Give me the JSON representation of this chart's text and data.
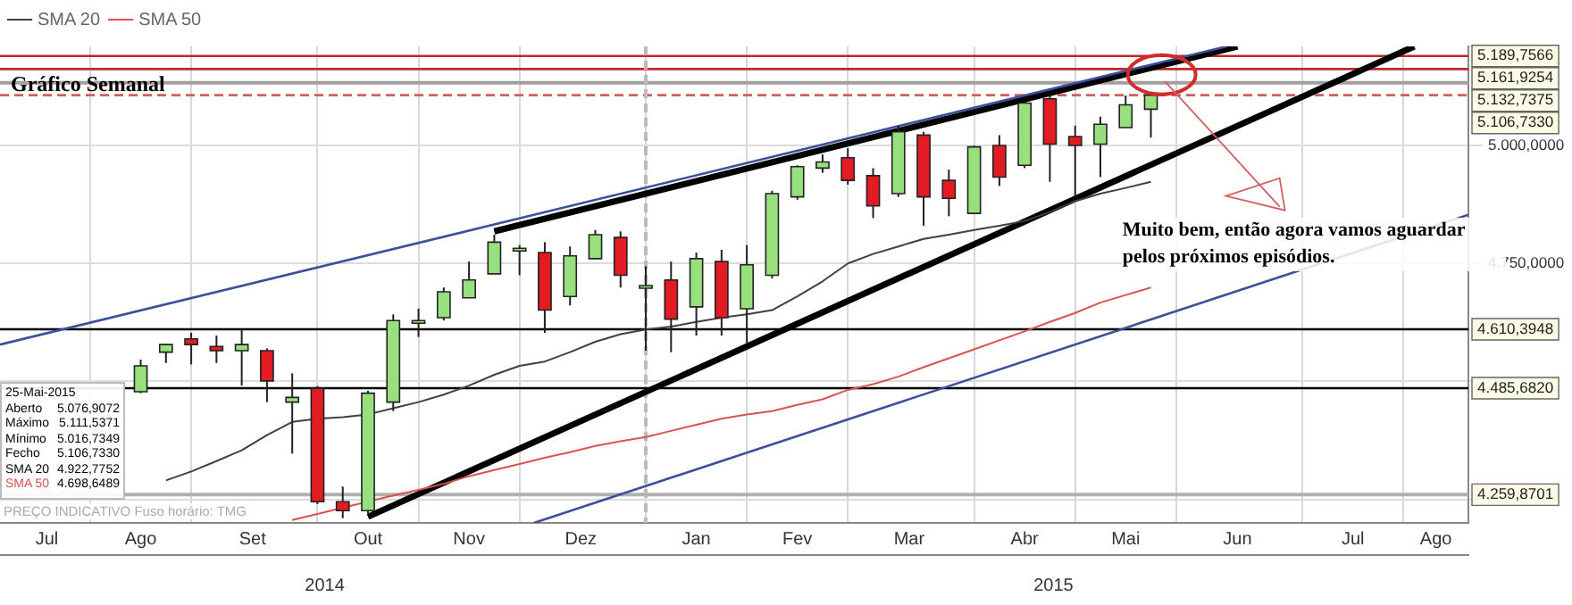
{
  "chart_data": {
    "type": "candlestick",
    "title": "Gráfico Semanal",
    "x": [
      "2014-08-18",
      "2014-08-25",
      "2014-09-01",
      "2014-09-08",
      "2014-09-15",
      "2014-09-22",
      "2014-09-29",
      "2014-10-06",
      "2014-10-13",
      "2014-10-20",
      "2014-10-27",
      "2014-11-03",
      "2014-11-10",
      "2014-11-17",
      "2014-11-24",
      "2014-12-01",
      "2014-12-08",
      "2014-12-15",
      "2014-12-22",
      "2014-12-29",
      "2015-01-05",
      "2015-01-12",
      "2015-01-19",
      "2015-01-26",
      "2015-02-02",
      "2015-02-09",
      "2015-02-16",
      "2015-02-23",
      "2015-03-02",
      "2015-03-09",
      "2015-03-16",
      "2015-03-23",
      "2015-03-30",
      "2015-04-06",
      "2015-04-13",
      "2015-04-20",
      "2015-04-27",
      "2015-05-04",
      "2015-05-11",
      "2015-05-18",
      "2015-05-25"
    ],
    "ohlc": [
      [
        4478,
        4546,
        4475,
        4533
      ],
      [
        4562,
        4578,
        4539,
        4578
      ],
      [
        4590,
        4603,
        4536,
        4578
      ],
      [
        4574,
        4597,
        4539,
        4565
      ],
      [
        4565,
        4610,
        4491,
        4578
      ],
      [
        4565,
        4570,
        4456,
        4501
      ],
      [
        4456,
        4517,
        4347,
        4466
      ],
      [
        4485,
        4490,
        4240,
        4245
      ],
      [
        4245,
        4277,
        4210,
        4226
      ],
      [
        4226,
        4480,
        4220,
        4475
      ],
      [
        4456,
        4642,
        4437,
        4629
      ],
      [
        4627,
        4654,
        4594,
        4629
      ],
      [
        4635,
        4699,
        4629,
        4690
      ],
      [
        4677,
        4754,
        4677,
        4715
      ],
      [
        4728,
        4811,
        4728,
        4795
      ],
      [
        4781,
        4789,
        4725,
        4782
      ],
      [
        4773,
        4795,
        4603,
        4651
      ],
      [
        4680,
        4786,
        4661,
        4766
      ],
      [
        4760,
        4821,
        4760,
        4811
      ],
      [
        4805,
        4818,
        4699,
        4725
      ],
      [
        4702,
        4744,
        4565,
        4703
      ],
      [
        4715,
        4754,
        4562,
        4632
      ],
      [
        4658,
        4773,
        4597,
        4760
      ],
      [
        4754,
        4779,
        4597,
        4635
      ],
      [
        4654,
        4789,
        4581,
        4747
      ],
      [
        4725,
        4904,
        4718,
        4898
      ],
      [
        4891,
        4958,
        4885,
        4955
      ],
      [
        4952,
        4981,
        4942,
        4965
      ],
      [
        4974,
        4994,
        4917,
        4926
      ],
      [
        4936,
        4952,
        4846,
        4872
      ],
      [
        4898,
        5042,
        4891,
        5029
      ],
      [
        5022,
        5029,
        4830,
        4891
      ],
      [
        4926,
        4949,
        4850,
        4888
      ],
      [
        4856,
        5000,
        4856,
        4997
      ],
      [
        5000,
        5022,
        4914,
        4933
      ],
      [
        4958,
        5093,
        4952,
        5090
      ],
      [
        5099,
        5106,
        4923,
        5003
      ],
      [
        5019,
        5042,
        4891,
        5000
      ],
      [
        5003,
        5061,
        4933,
        5045
      ],
      [
        5038,
        5106,
        5038,
        5086
      ],
      [
        5076.9072,
        5111.5371,
        5016.7349,
        5106.733
      ]
    ],
    "colors": [
      "#98e07e",
      "#98e07e",
      "#e31b23",
      "#e31b23",
      "#98e07e",
      "#e31b23",
      "#98e07e",
      "#e31b23",
      "#e31b23",
      "#98e07e",
      "#98e07e",
      "#98e07e",
      "#98e07e",
      "#98e07e",
      "#98e07e",
      "#98e07e",
      "#e31b23",
      "#98e07e",
      "#98e07e",
      "#e31b23",
      "#98e07e",
      "#e31b23",
      "#98e07e",
      "#e31b23",
      "#98e07e",
      "#98e07e",
      "#98e07e",
      "#98e07e",
      "#e31b23",
      "#e31b23",
      "#98e07e",
      "#e31b23",
      "#e31b23",
      "#98e07e",
      "#e31b23",
      "#98e07e",
      "#e31b23",
      "#e31b23",
      "#98e07e",
      "#98e07e",
      "#98e07e"
    ],
    "series": [
      {
        "name": "SMA 20",
        "type": "line",
        "color": "#404040",
        "x": [
          "2014-08-25",
          "2014-09-01",
          "2014-09-08",
          "2014-09-15",
          "2014-09-22",
          "2014-09-29",
          "2014-10-06",
          "2014-10-13",
          "2014-10-20",
          "2014-10-27",
          "2014-11-03",
          "2014-11-10",
          "2014-11-17",
          "2014-11-24",
          "2014-12-01",
          "2014-12-08",
          "2014-12-15",
          "2014-12-22",
          "2014-12-29",
          "2015-01-05",
          "2015-01-12",
          "2015-01-19",
          "2015-01-26",
          "2015-02-02",
          "2015-02-09",
          "2015-02-16",
          "2015-02-23",
          "2015-03-02",
          "2015-03-09",
          "2015-03-16",
          "2015-03-23",
          "2015-03-30",
          "2015-04-06",
          "2015-04-13",
          "2015-04-20",
          "2015-04-27",
          "2015-05-04",
          "2015-05-11",
          "2015-05-18",
          "2015-05-25"
        ],
        "values": [
          4290,
          4309,
          4331,
          4354,
          4386,
          4414,
          4421,
          4424,
          4430,
          4443,
          4456,
          4472,
          4491,
          4514,
          4533,
          4542,
          4562,
          4584,
          4600,
          4610,
          4616,
          4626,
          4635,
          4642,
          4651,
          4680,
          4712,
          4750,
          4770,
          4786,
          4802,
          4811,
          4821,
          4830,
          4840,
          4859,
          4882,
          4898,
          4910,
          4923
        ]
      },
      {
        "name": "SMA 50",
        "type": "line",
        "color": "#d9534f",
        "x": [
          "2014-09-29",
          "2014-10-06",
          "2014-10-13",
          "2014-10-20",
          "2014-10-27",
          "2014-11-03",
          "2014-11-10",
          "2014-11-17",
          "2014-11-24",
          "2014-12-01",
          "2014-12-08",
          "2014-12-15",
          "2014-12-22",
          "2014-12-29",
          "2015-01-05",
          "2015-01-12",
          "2015-01-19",
          "2015-01-26",
          "2015-02-02",
          "2015-02-09",
          "2015-02-16",
          "2015-02-23",
          "2015-03-02",
          "2015-03-09",
          "2015-03-16",
          "2015-03-23",
          "2015-03-30",
          "2015-04-06",
          "2015-04-13",
          "2015-04-20",
          "2015-04-27",
          "2015-05-04",
          "2015-05-11",
          "2015-05-18",
          "2015-05-25"
        ],
        "values": [
          4206,
          4219,
          4232,
          null,
          4258,
          4270,
          4283,
          4299,
          4312,
          4325,
          4338,
          4350,
          4363,
          4373,
          4382,
          4395,
          4408,
          4421,
          4430,
          4437,
          4450,
          4462,
          4482,
          4494,
          4510,
          4530,
          4549,
          4568,
          4587,
          4606,
          4626,
          4645,
          4667,
          4683,
          4699
        ]
      },
      {
        "type": "line",
        "color": "#3b4f9c",
        "x": [
          "2014-07-10",
          "2015-06-15"
        ],
        "values": [
          4578,
          5210
        ]
      },
      {
        "type": "line",
        "color": "#3b4f9c",
        "x": [
          "2014-12-05",
          "2015-08-21"
        ],
        "values": [
          4200,
          4853
        ]
      },
      {
        "type": "line",
        "color": "#000000",
        "x": [
          "2014-11-24",
          "2015-06-18"
        ],
        "values": [
          4818,
          5210
        ]
      },
      {
        "type": "line",
        "color": "#000000",
        "x": [
          "2014-10-20",
          "2015-08-06"
        ],
        "values": [
          4213,
          5210
        ]
      }
    ],
    "xlim": [
      "2014-07-10",
      "2015-08-21"
    ],
    "xticks": [
      {
        "value": "2014-07-23",
        "label": "Jul"
      },
      {
        "value": "2014-08-04",
        "label": null
      },
      {
        "value": "2014-08-18",
        "label": "Ago"
      },
      {
        "value": "2014-09-01",
        "label": null
      },
      {
        "value": "2014-09-18",
        "label": "Set"
      },
      {
        "value": "2014-10-06",
        "label": null
      },
      {
        "value": "2014-10-20",
        "label": "Out"
      },
      {
        "value": "2014-11-03",
        "label": null
      },
      {
        "value": "2014-11-17",
        "label": "Nov"
      },
      {
        "value": "2014-12-01",
        "label": null
      },
      {
        "value": "2014-12-18",
        "label": "Dez"
      },
      {
        "value": "2015-01-05",
        "label": null
      },
      {
        "value": "2015-01-19",
        "label": "Jan"
      },
      {
        "value": "2015-02-02",
        "label": null
      },
      {
        "value": "2015-02-16",
        "label": "Fev"
      },
      {
        "value": "2015-03-02",
        "label": null
      },
      {
        "value": "2015-03-19",
        "label": "Mar"
      },
      {
        "value": "2015-04-06",
        "label": null
      },
      {
        "value": "2015-04-20",
        "label": "Abr"
      },
      {
        "value": "2015-05-04",
        "label": null
      },
      {
        "value": "2015-05-18",
        "label": "Mai"
      },
      {
        "value": "2015-06-01",
        "label": null
      },
      {
        "value": "2015-06-18",
        "label": "Jun"
      },
      {
        "value": "2015-07-06",
        "label": null
      },
      {
        "value": "2015-07-20",
        "label": "Jul"
      },
      {
        "value": "2015-08-03",
        "label": null
      },
      {
        "value": "2015-08-12",
        "label": "Ago"
      }
    ],
    "x2lim": [
      "2014-07-10",
      "2015-08-21"
    ],
    "x2ticks": [
      {
        "value": "2014-10-08",
        "label": "2014"
      },
      {
        "value": "2015-04-28",
        "label": "2015"
      }
    ],
    "ylim": [
      4200,
      5210
    ],
    "yticks": [
      {
        "value": 4250,
        "label": null
      },
      {
        "value": 4500,
        "label": null
      },
      {
        "value": 4750,
        "label": "4.750,0000"
      },
      {
        "value": 5000,
        "label": "5.000,0000"
      }
    ],
    "ref_lines": [
      {
        "axis": "y",
        "value": 5189.7566,
        "label": "5.189,7566",
        "color": "#c0282d"
      },
      {
        "axis": "y",
        "value": 5161.9254,
        "label": "5.161,9254",
        "color": "#c0282d"
      },
      {
        "axis": "y",
        "value": 5132.7375,
        "label": "5.132,7375",
        "color": "#a0a0a0"
      },
      {
        "axis": "y",
        "value": 5106.733,
        "label": "5.106,7330",
        "color": "#d06060",
        "line_style": "dashed"
      },
      {
        "axis": "y",
        "value": 4610.3948,
        "label": "4.610,3948",
        "color": "#000000"
      },
      {
        "axis": "y",
        "value": 4485.682,
        "label": "4.485,6820",
        "color": "#000000"
      },
      {
        "axis": "y",
        "value": 4259.8701,
        "label": "4.259,8701",
        "color": "#b0b0b0"
      },
      {
        "axis": "x",
        "value": "2015-01-05",
        "color": "#bbbbbb",
        "line_style": "dashed"
      }
    ],
    "annotations": [
      {
        "text": "Muito bem, então agora vamos aguardar pelos próximos episódios.",
        "x": "2015-05-28",
        "y": 5150
      },
      "25-Mai-2015",
      "Aberto 5.076,9072",
      "Máximo 5.111,5371",
      "Mínimo 5.016,7349",
      "Fecho 5.106,7330",
      "SMA 20 4.922,7752",
      "SMA 50 4.698,6489",
      "PREÇO INDICATIVO",
      "Fuso horário: TMG"
    ],
    "grid": true,
    "legend": "top left",
    "marker": "none",
    "line_style": "solid"
  }
}
